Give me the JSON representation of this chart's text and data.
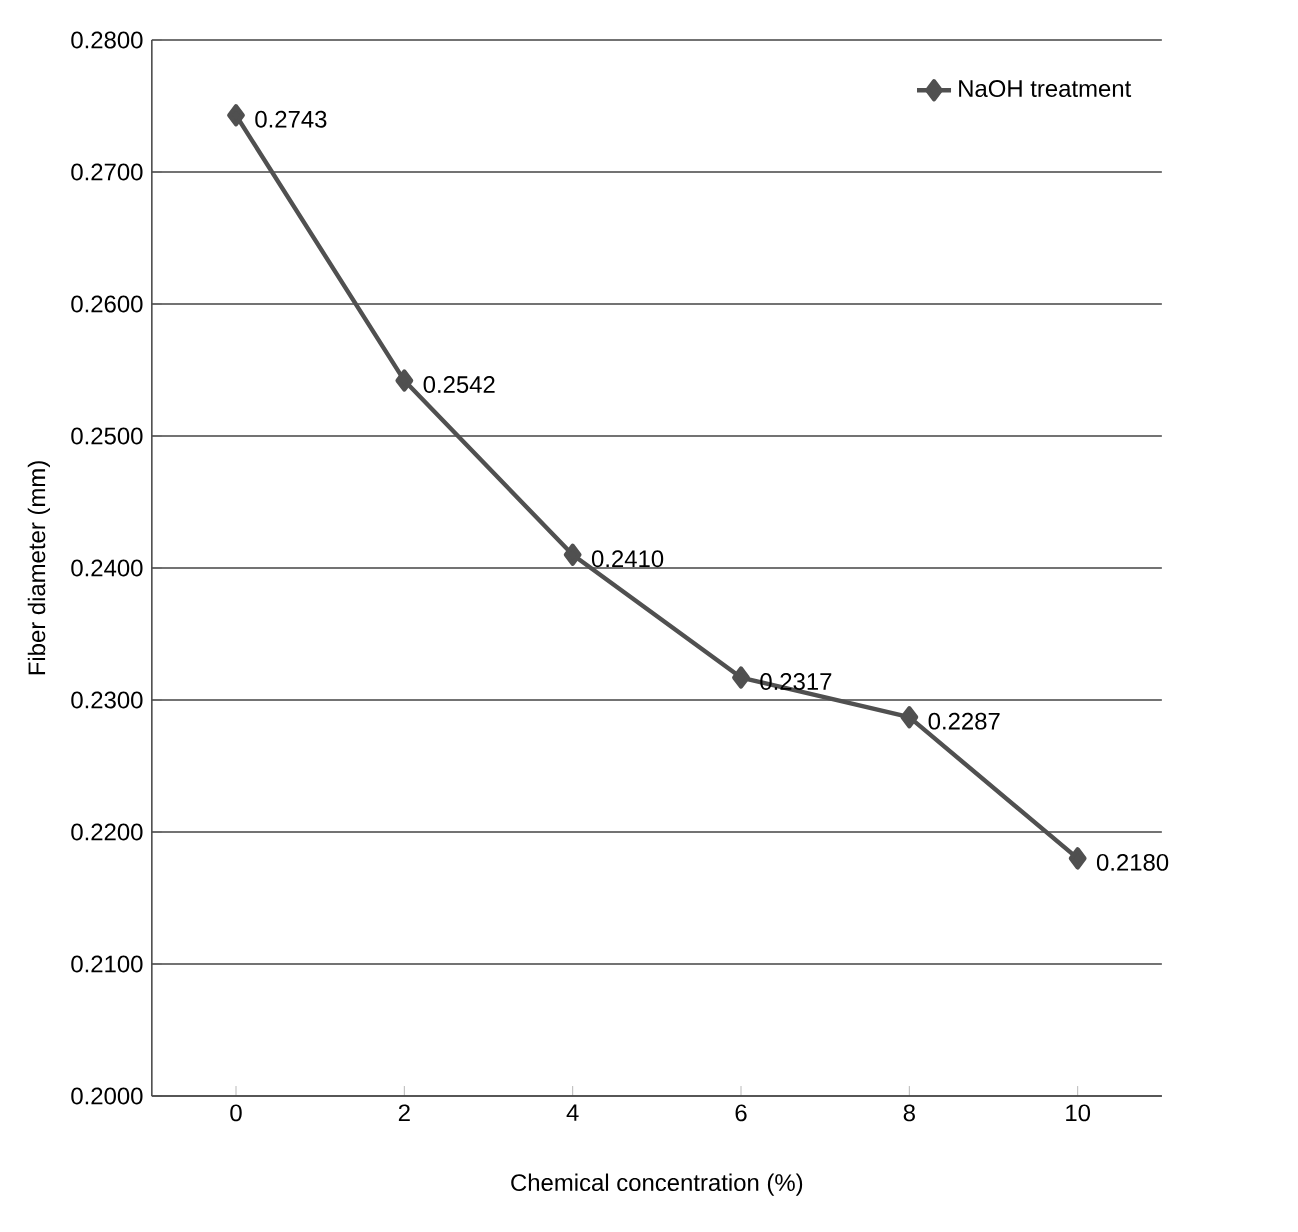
{
  "chart_data": {
    "type": "line",
    "xlabel": "Chemical concentration (%)",
    "ylabel": "Fiber diameter (mm)",
    "categories": [
      "0",
      "2",
      "4",
      "6",
      "8",
      "10"
    ],
    "series": [
      {
        "name": "NaOH treatment",
        "color": "#505050",
        "values": [
          0.2743,
          0.2542,
          0.241,
          0.2317,
          0.2287,
          0.218
        ],
        "value_labels": [
          "0.2743",
          "0.2542",
          "0.2410",
          "0.2317",
          "0.2287",
          "0.2180"
        ]
      }
    ],
    "ylim": [
      0.2,
      0.28
    ],
    "yticks": [
      {
        "value": 0.2,
        "label": "0.2000"
      },
      {
        "value": 0.21,
        "label": "0.2100"
      },
      {
        "value": 0.22,
        "label": "0.2200"
      },
      {
        "value": 0.23,
        "label": "0.2300"
      },
      {
        "value": 0.24,
        "label": "0.2400"
      },
      {
        "value": 0.25,
        "label": "0.2500"
      },
      {
        "value": 0.26,
        "label": "0.2600"
      },
      {
        "value": 0.27,
        "label": "0.2700"
      },
      {
        "value": 0.28,
        "label": "0.2800"
      }
    ],
    "grid": "y",
    "legend": "top right",
    "marker": "diamond",
    "line_style": "solid"
  }
}
